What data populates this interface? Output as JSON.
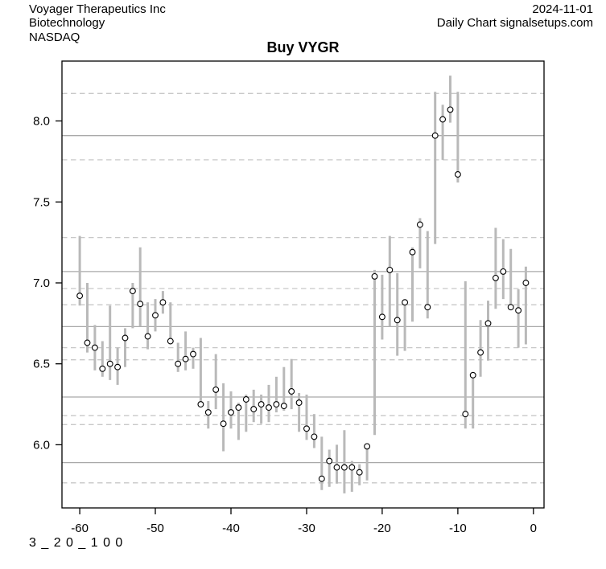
{
  "header": {
    "company": "Voyager Therapeutics Inc",
    "sector": "Biotechnology",
    "exchange": "NASDAQ",
    "date": "2024-11-01",
    "source": "Daily Chart signalsetups.com"
  },
  "footer": {
    "signal_code": "3 _ 2 0 _ 1 0 0"
  },
  "chart_data": {
    "type": "hlc_bar",
    "title": "Buy VYGR",
    "xlabel": "",
    "ylabel": "",
    "xlim": [
      -62.35,
      1.4
    ],
    "ylim": [
      5.61,
      8.37
    ],
    "x_ticks": [
      {
        "v": -60,
        "label": "-60"
      },
      {
        "v": -50,
        "label": "-50"
      },
      {
        "v": -40,
        "label": "-40"
      },
      {
        "v": -30,
        "label": "-30"
      },
      {
        "v": -20,
        "label": "-20"
      },
      {
        "v": -10,
        "label": "-10"
      },
      {
        "v": 0,
        "label": "0"
      }
    ],
    "y_ticks": [
      {
        "v": 6.0,
        "label": "6.0"
      },
      {
        "v": 6.5,
        "label": "6.5"
      },
      {
        "v": 7.0,
        "label": "7.0"
      },
      {
        "v": 7.5,
        "label": "7.5"
      },
      {
        "v": 8.0,
        "label": "8.0"
      }
    ],
    "levels_solid": [
      7.91,
      7.07,
      6.73,
      6.295,
      5.89
    ],
    "levels_dashed": [
      8.17,
      7.76,
      7.28,
      6.965,
      6.865,
      6.6,
      6.525,
      6.18,
      6.125,
      5.765
    ],
    "series_format": [
      "day",
      "high",
      "low",
      "close"
    ],
    "series": [
      [
        -60,
        7.29,
        6.86,
        6.92
      ],
      [
        -59,
        7.0,
        6.57,
        6.63
      ],
      [
        -58,
        6.74,
        6.46,
        6.6
      ],
      [
        -57,
        6.64,
        6.42,
        6.47
      ],
      [
        -56,
        6.86,
        6.4,
        6.5
      ],
      [
        -55,
        6.6,
        6.37,
        6.48
      ],
      [
        -54,
        6.72,
        6.48,
        6.66
      ],
      [
        -53,
        7.0,
        6.72,
        6.95
      ],
      [
        -52,
        7.22,
        6.73,
        6.87
      ],
      [
        -51,
        6.88,
        6.59,
        6.67
      ],
      [
        -50,
        6.9,
        6.7,
        6.8
      ],
      [
        -49,
        6.95,
        6.81,
        6.88
      ],
      [
        -48,
        6.88,
        6.62,
        6.64
      ],
      [
        -47,
        6.63,
        6.45,
        6.5
      ],
      [
        -46,
        6.7,
        6.46,
        6.53
      ],
      [
        -45,
        6.6,
        6.47,
        6.56
      ],
      [
        -44,
        6.66,
        6.24,
        6.25
      ],
      [
        -43,
        6.27,
        6.1,
        6.2
      ],
      [
        -42,
        6.56,
        6.22,
        6.34
      ],
      [
        -41,
        6.38,
        5.96,
        6.13
      ],
      [
        -40,
        6.33,
        6.1,
        6.2
      ],
      [
        -39,
        6.26,
        6.03,
        6.23
      ],
      [
        -38,
        6.31,
        6.08,
        6.28
      ],
      [
        -37,
        6.34,
        6.14,
        6.22
      ],
      [
        -36,
        6.31,
        6.13,
        6.25
      ],
      [
        -35,
        6.37,
        6.14,
        6.23
      ],
      [
        -34,
        6.42,
        6.2,
        6.25
      ],
      [
        -33,
        6.48,
        6.21,
        6.24
      ],
      [
        -32,
        6.53,
        6.22,
        6.33
      ],
      [
        -31,
        6.32,
        6.08,
        6.26
      ],
      [
        -30,
        6.31,
        6.03,
        6.1
      ],
      [
        -29,
        6.19,
        5.98,
        6.05
      ],
      [
        -28,
        6.05,
        5.72,
        5.79
      ],
      [
        -27,
        5.97,
        5.74,
        5.9
      ],
      [
        -26,
        6.0,
        5.76,
        5.86
      ],
      [
        -25,
        6.09,
        5.7,
        5.86
      ],
      [
        -24,
        5.9,
        5.71,
        5.86
      ],
      [
        -23,
        5.88,
        5.75,
        5.83
      ],
      [
        -22,
        6.01,
        5.78,
        5.99
      ],
      [
        -21,
        7.08,
        6.06,
        7.04
      ],
      [
        -20,
        7.05,
        6.65,
        6.79
      ],
      [
        -19,
        7.29,
        6.73,
        7.08
      ],
      [
        -18,
        7.06,
        6.55,
        6.77
      ],
      [
        -17,
        6.89,
        6.58,
        6.88
      ],
      [
        -16,
        7.22,
        6.76,
        7.19
      ],
      [
        -15,
        7.4,
        7.09,
        7.36
      ],
      [
        -14,
        7.32,
        6.78,
        6.85
      ],
      [
        -13,
        8.18,
        7.24,
        7.91
      ],
      [
        -12,
        8.1,
        7.76,
        8.01
      ],
      [
        -11,
        8.28,
        7.99,
        8.07
      ],
      [
        -10,
        8.18,
        7.62,
        7.67
      ],
      [
        -9,
        7.01,
        6.1,
        6.19
      ],
      [
        -8,
        6.45,
        6.1,
        6.43
      ],
      [
        -7,
        6.77,
        6.42,
        6.57
      ],
      [
        -6,
        6.89,
        6.52,
        6.75
      ],
      [
        -5,
        7.34,
        6.84,
        7.03
      ],
      [
        -4,
        7.27,
        6.9,
        7.07
      ],
      [
        -3,
        7.21,
        6.84,
        6.85
      ],
      [
        -2,
        6.96,
        6.6,
        6.83
      ],
      [
        -1,
        7.1,
        6.62,
        7.0
      ]
    ],
    "colors": {
      "bar": "#b9b9b9",
      "level_solid": "#a9a9a9",
      "level_dashed": "#c8c8c8",
      "marker_stroke": "#000000",
      "marker_fill": "#ffffff",
      "axis": "#000000",
      "text": "#000000",
      "background": "#ffffff"
    },
    "legend": null,
    "grid": "horizontal-levels-only"
  }
}
